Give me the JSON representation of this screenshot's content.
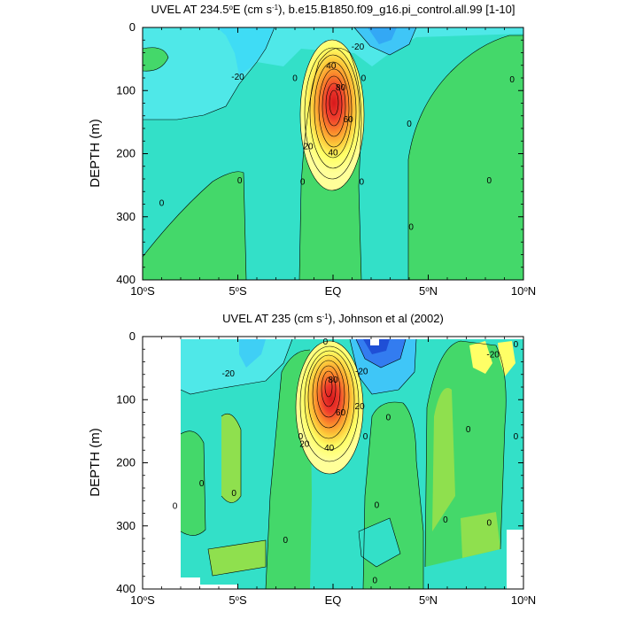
{
  "chart_data": [
    {
      "type": "contour",
      "title": "UVEL AT 234.5°E (cm s⁻¹), b.e15.B1850.f09_g16.pi_control.all.99 [1-10]",
      "title_parts": [
        "UVEL AT 234.5",
        "o",
        "E (cm s",
        "-1",
        "), b.e15.B1850.f09_g16.pi_control.all.99 [1-10]"
      ],
      "ylabel": "DEPTH (m)",
      "xlim": [
        -10,
        10
      ],
      "ylim": [
        400,
        0
      ],
      "x_ticks": [
        {
          "v": -10,
          "main": "10",
          "sup": "o",
          "post": "S"
        },
        {
          "v": -5,
          "main": "5",
          "sup": "o",
          "post": "S"
        },
        {
          "v": 0,
          "main": "EQ",
          "sup": "",
          "post": ""
        },
        {
          "v": 5,
          "main": "5",
          "sup": "o",
          "post": "N"
        },
        {
          "v": 10,
          "main": "10",
          "sup": "o",
          "post": "N"
        }
      ],
      "y_ticks": [
        "0",
        "100",
        "200",
        "300",
        "400"
      ],
      "y_tick_values": [
        0,
        100,
        200,
        300,
        400
      ],
      "contour_labels": [
        {
          "text": "-20",
          "x": -5,
          "y": 78
        },
        {
          "text": "-20",
          "x": 1.3,
          "y": 30
        },
        {
          "text": "0",
          "x": -2,
          "y": 80
        },
        {
          "text": "0",
          "x": 1.6,
          "y": 80
        },
        {
          "text": "0",
          "x": 9.4,
          "y": 82
        },
        {
          "text": "0",
          "x": 4,
          "y": 152
        },
        {
          "text": "0",
          "x": -9,
          "y": 278
        },
        {
          "text": "0",
          "x": -4.9,
          "y": 242
        },
        {
          "text": "0",
          "x": -1.6,
          "y": 244
        },
        {
          "text": "0",
          "x": 1.5,
          "y": 244
        },
        {
          "text": "0",
          "x": 8.2,
          "y": 242
        },
        {
          "text": "0",
          "x": 4.1,
          "y": 316
        },
        {
          "text": "40",
          "x": -0.1,
          "y": 60
        },
        {
          "text": "80",
          "x": 0.4,
          "y": 95
        },
        {
          "text": "60",
          "x": 0.8,
          "y": 145
        },
        {
          "text": "20",
          "x": -1.3,
          "y": 188
        },
        {
          "text": "40",
          "x": 0,
          "y": 198
        }
      ],
      "data_summary": {
        "core_max_cms": 100,
        "core_x": 0,
        "core_depth_m": 115,
        "contour_interval": 10,
        "westward_min_cms": -30
      }
    },
    {
      "type": "contour",
      "title": "UVEL AT 235 (cm s⁻¹), Johnson et al (2002)",
      "title_parts": [
        "UVEL AT 235 (cm s",
        "-1",
        "), Johnson et al (2002)"
      ],
      "ylabel": "DEPTH (m)",
      "xlim": [
        -10,
        10
      ],
      "ylim": [
        400,
        0
      ],
      "x_ticks": [
        {
          "v": -10,
          "main": "10",
          "sup": "o",
          "post": "S"
        },
        {
          "v": -5,
          "main": "5",
          "sup": "o",
          "post": "S"
        },
        {
          "v": 0,
          "main": "EQ",
          "sup": "",
          "post": ""
        },
        {
          "v": 5,
          "main": "5",
          "sup": "o",
          "post": "N"
        },
        {
          "v": 10,
          "main": "10",
          "sup": "o",
          "post": "N"
        }
      ],
      "y_ticks": [
        "0",
        "100",
        "200",
        "300",
        "400"
      ],
      "y_tick_values": [
        0,
        100,
        200,
        300,
        400
      ],
      "contour_labels": [
        {
          "text": "-20",
          "x": -5.5,
          "y": 58
        },
        {
          "text": "-20",
          "x": 1.5,
          "y": 55
        },
        {
          "text": "0",
          "x": -0.4,
          "y": 8
        },
        {
          "text": "0",
          "x": 9.6,
          "y": 12
        },
        {
          "text": "-20",
          "x": 8.4,
          "y": 28
        },
        {
          "text": "0",
          "x": 2.9,
          "y": 128
        },
        {
          "text": "0",
          "x": -1.7,
          "y": 158
        },
        {
          "text": "0",
          "x": 1.7,
          "y": 158
        },
        {
          "text": "0",
          "x": 7.1,
          "y": 147
        },
        {
          "text": "0",
          "x": 9.6,
          "y": 158
        },
        {
          "text": "0",
          "x": -6.9,
          "y": 232
        },
        {
          "text": "0",
          "x": -5.2,
          "y": 248
        },
        {
          "text": "0",
          "x": -8.3,
          "y": 268
        },
        {
          "text": "0",
          "x": 2.3,
          "y": 267
        },
        {
          "text": "0",
          "x": 5.9,
          "y": 290
        },
        {
          "text": "0",
          "x": 8.2,
          "y": 295
        },
        {
          "text": "0",
          "x": -2.5,
          "y": 322
        },
        {
          "text": "0",
          "x": 2.2,
          "y": 386
        },
        {
          "text": "80",
          "x": 0,
          "y": 68
        },
        {
          "text": "60",
          "x": 0.4,
          "y": 120
        },
        {
          "text": "20",
          "x": 1.4,
          "y": 110
        },
        {
          "text": "20",
          "x": -1.5,
          "y": 170
        },
        {
          "text": "40",
          "x": -0.2,
          "y": 176
        }
      ],
      "data_summary": {
        "core_max_cms": 100,
        "core_x": -0.4,
        "core_depth_m": 90,
        "contour_interval": 10,
        "westward_min_cms": -40
      }
    }
  ]
}
